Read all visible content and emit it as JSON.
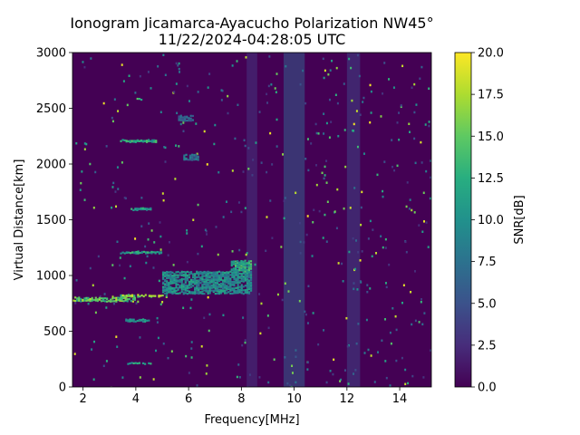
{
  "chart_data": {
    "type": "heatmap",
    "title_line1": "Ionogram Jicamarca-Ayacucho Polarization NW45°",
    "title_line2": "11/22/2024-04:28:05 UTC",
    "xlabel": "Frequency[MHz]",
    "ylabel": "Virtual Distance[km]",
    "colorbar_label": "SNR[dB]",
    "colormap": "viridis",
    "xlim": [
      1.6,
      15.2
    ],
    "ylim": [
      0,
      3000
    ],
    "clim": [
      0,
      20
    ],
    "x_ticks": [
      2,
      4,
      6,
      8,
      10,
      12,
      14
    ],
    "y_ticks": [
      0,
      500,
      1000,
      1500,
      2000,
      2500,
      3000
    ],
    "colorbar_ticks": [
      "0.0",
      "2.5",
      "5.0",
      "7.5",
      "10.0",
      "12.5",
      "15.0",
      "17.5",
      "20.0"
    ],
    "grid": false,
    "traces": [
      {
        "f_start": 1.6,
        "f_end": 4.0,
        "distance_start": 780,
        "distance_end": 820,
        "snr": 18
      },
      {
        "f_start": 3.4,
        "f_end": 5.2,
        "distance_start": 820,
        "distance_end": 840,
        "snr": 19
      },
      {
        "f_start": 3.4,
        "f_end": 5.0,
        "distance_start": 1210,
        "distance_end": 1230,
        "snr": 14
      },
      {
        "f_start": 3.8,
        "f_end": 4.6,
        "distance_start": 1600,
        "distance_end": 1620,
        "snr": 14
      },
      {
        "f_start": 3.4,
        "f_end": 4.8,
        "distance_start": 2210,
        "distance_end": 2230,
        "snr": 15
      },
      {
        "f_start": 3.8,
        "f_end": 4.4,
        "distance_start": 2590,
        "distance_end": 2600,
        "snr": 15
      },
      {
        "f_start": 3.6,
        "f_end": 4.6,
        "distance_start": 600,
        "distance_end": 620,
        "snr": 13
      },
      {
        "f_start": 3.6,
        "f_end": 4.6,
        "distance_start": 220,
        "distance_end": 230,
        "snr": 14
      },
      {
        "f_start": 5.0,
        "f_end": 8.4,
        "distance_start": 850,
        "distance_end": 1050,
        "snr": 12
      },
      {
        "f_start": 7.6,
        "f_end": 8.4,
        "distance_start": 1050,
        "distance_end": 1150,
        "snr": 15
      },
      {
        "f_start": 5.8,
        "f_end": 6.4,
        "distance_start": 2050,
        "distance_end": 2100,
        "snr": 9
      },
      {
        "f_start": 5.6,
        "f_end": 6.2,
        "distance_start": 2400,
        "distance_end": 2450,
        "snr": 8
      }
    ],
    "bands": [
      {
        "f_start": 9.6,
        "f_end": 10.4,
        "snr": 6
      },
      {
        "f_start": 12.0,
        "f_end": 12.5,
        "snr": 4
      },
      {
        "f_start": 8.2,
        "f_end": 8.6,
        "snr": 3
      }
    ]
  }
}
